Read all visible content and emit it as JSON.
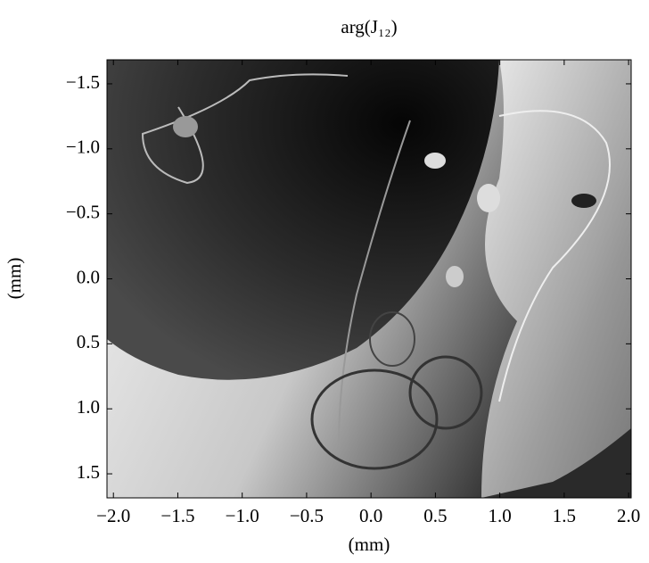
{
  "chart_data": {
    "type": "image",
    "title": "arg(J₁₂)",
    "xlabel": "(mm)",
    "ylabel": "(mm)",
    "xlim": [
      -2.05,
      2.02
    ],
    "ylim": [
      -1.685,
      1.685
    ],
    "y_inverted": true,
    "xticks": [
      {
        "value": -2,
        "label": "−2.0"
      },
      {
        "value": -1.5,
        "label": "−1.5"
      },
      {
        "value": -1,
        "label": "−1.0"
      },
      {
        "value": -0.5,
        "label": "−0.5"
      },
      {
        "value": 0,
        "label": "0.0"
      },
      {
        "value": 0.5,
        "label": "0.5"
      },
      {
        "value": 1,
        "label": "1.0"
      },
      {
        "value": 1.5,
        "label": "1.5"
      },
      {
        "value": 2,
        "label": "2.0"
      }
    ],
    "yticks": [
      {
        "value": -1.5,
        "label": "−1.5"
      },
      {
        "value": -1,
        "label": "−1.0"
      },
      {
        "value": -0.5,
        "label": "−0.5"
      },
      {
        "value": 0,
        "label": "0.0"
      },
      {
        "value": 0.5,
        "label": "0.5"
      },
      {
        "value": 1,
        "label": "1.0"
      },
      {
        "value": 1.5,
        "label": "1.5"
      }
    ]
  }
}
